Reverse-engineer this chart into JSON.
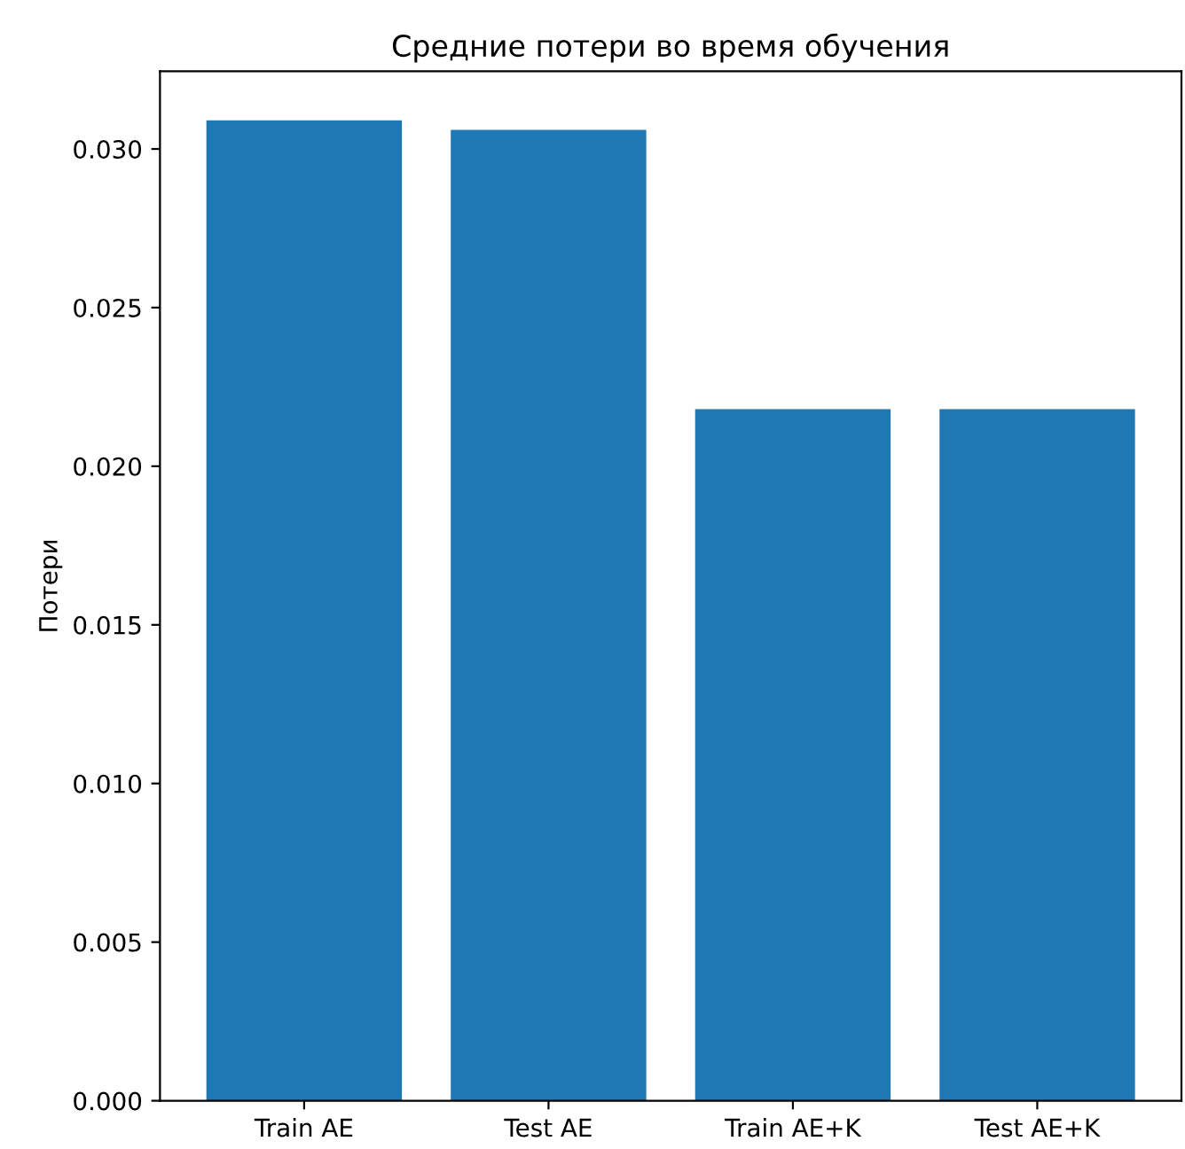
{
  "chart_data": {
    "type": "bar",
    "title": "Средние потери во время обучения",
    "ylabel": "Потери",
    "categories": [
      "Train AE",
      "Test AE",
      "Train AE+K",
      "Test AE+K"
    ],
    "values": [
      0.0309,
      0.0306,
      0.0218,
      0.0218
    ],
    "color": "#1f77b4",
    "ylim": [
      0,
      0.03245
    ],
    "yticks": [
      {
        "value": 0,
        "label": "0.000"
      },
      {
        "value": 0.005,
        "label": "0.005"
      },
      {
        "value": 0.01,
        "label": "0.010"
      },
      {
        "value": 0.015,
        "label": "0.015"
      },
      {
        "value": 0.02,
        "label": "0.020"
      },
      {
        "value": 0.025,
        "label": "0.025"
      },
      {
        "value": 0.03,
        "label": "0.030"
      }
    ],
    "grid": false
  }
}
